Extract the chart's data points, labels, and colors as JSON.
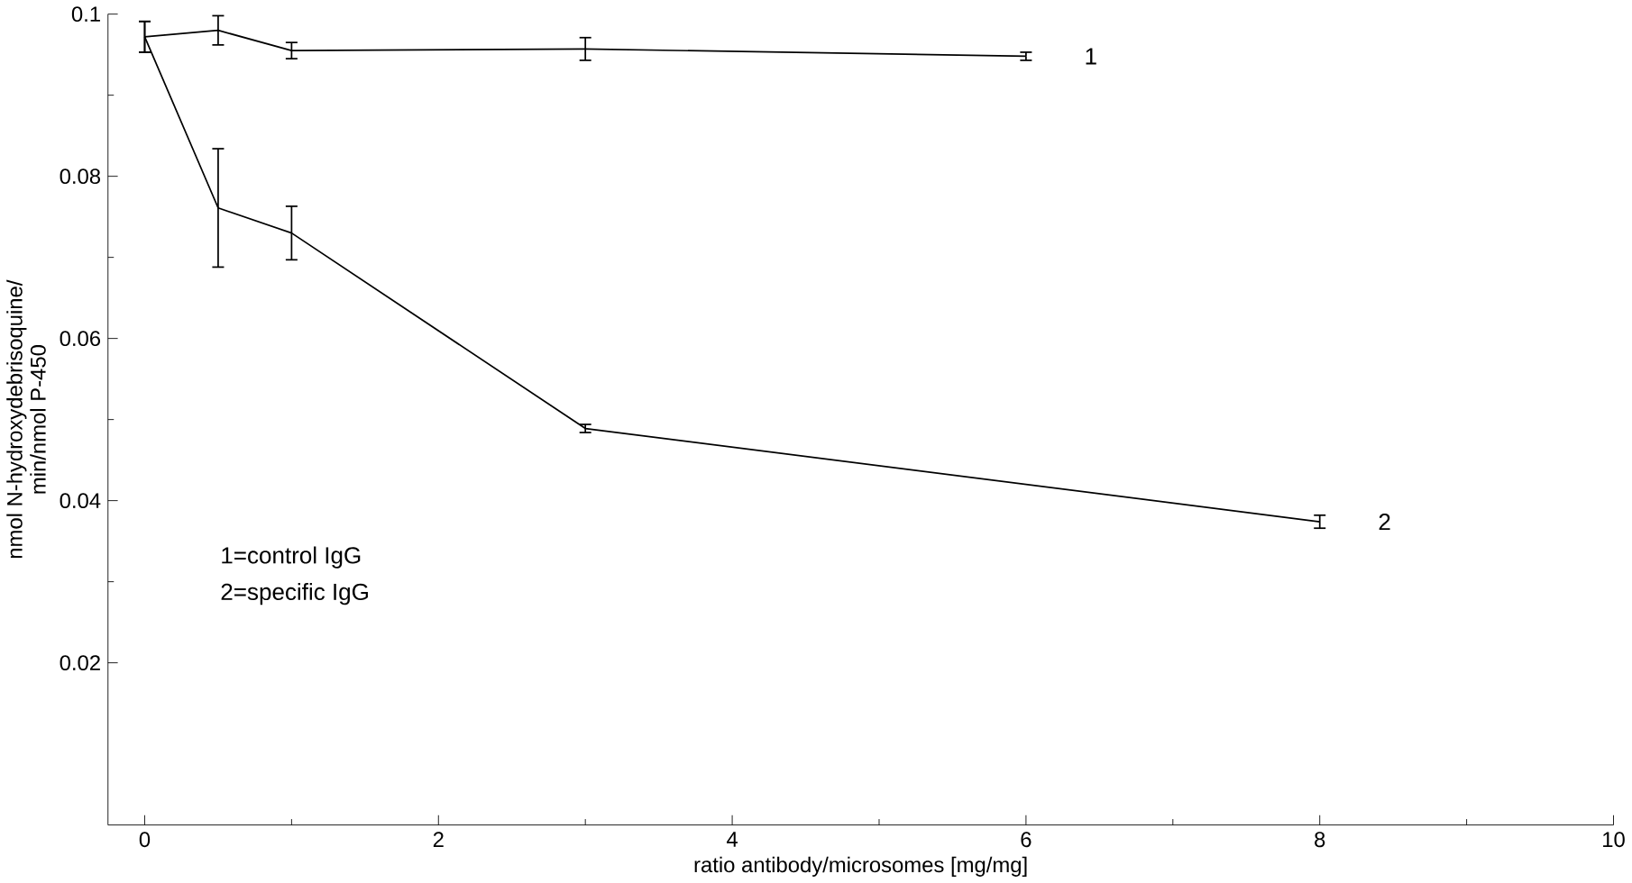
{
  "chart_data": {
    "type": "line",
    "xlabel": "ratio antibody/microsomes [mg/mg]",
    "ylabel": "nmol N-hydroxydebrisoquine/\nmin/nmol P-450",
    "xlim": [
      -0.25,
      10
    ],
    "ylim": [
      0,
      0.1
    ],
    "xticks": [
      0,
      2,
      4,
      6,
      8,
      10
    ],
    "yticks": [
      0.02,
      0.04,
      0.06,
      0.08,
      0.1
    ],
    "series": [
      {
        "name": "1",
        "color": "#000000",
        "x": [
          0,
          0.5,
          1,
          3,
          6
        ],
        "values": [
          0.0972,
          0.098,
          0.0955,
          0.0957,
          0.0948
        ],
        "errors": [
          0.0019,
          0.0018,
          0.001,
          0.0014,
          0.0005
        ]
      },
      {
        "name": "2",
        "color": "#000000",
        "x": [
          0,
          0.5,
          1,
          3,
          8
        ],
        "values": [
          0.0972,
          0.0761,
          0.073,
          0.0489,
          0.0374
        ],
        "errors": [
          0.0019,
          0.0073,
          0.0033,
          0.0005,
          0.0008
        ]
      }
    ],
    "annotations": [
      "1=control IgG",
      "2=specific IgG"
    ],
    "marker": "none",
    "line_style": "solid",
    "grid": false,
    "legend": false
  }
}
